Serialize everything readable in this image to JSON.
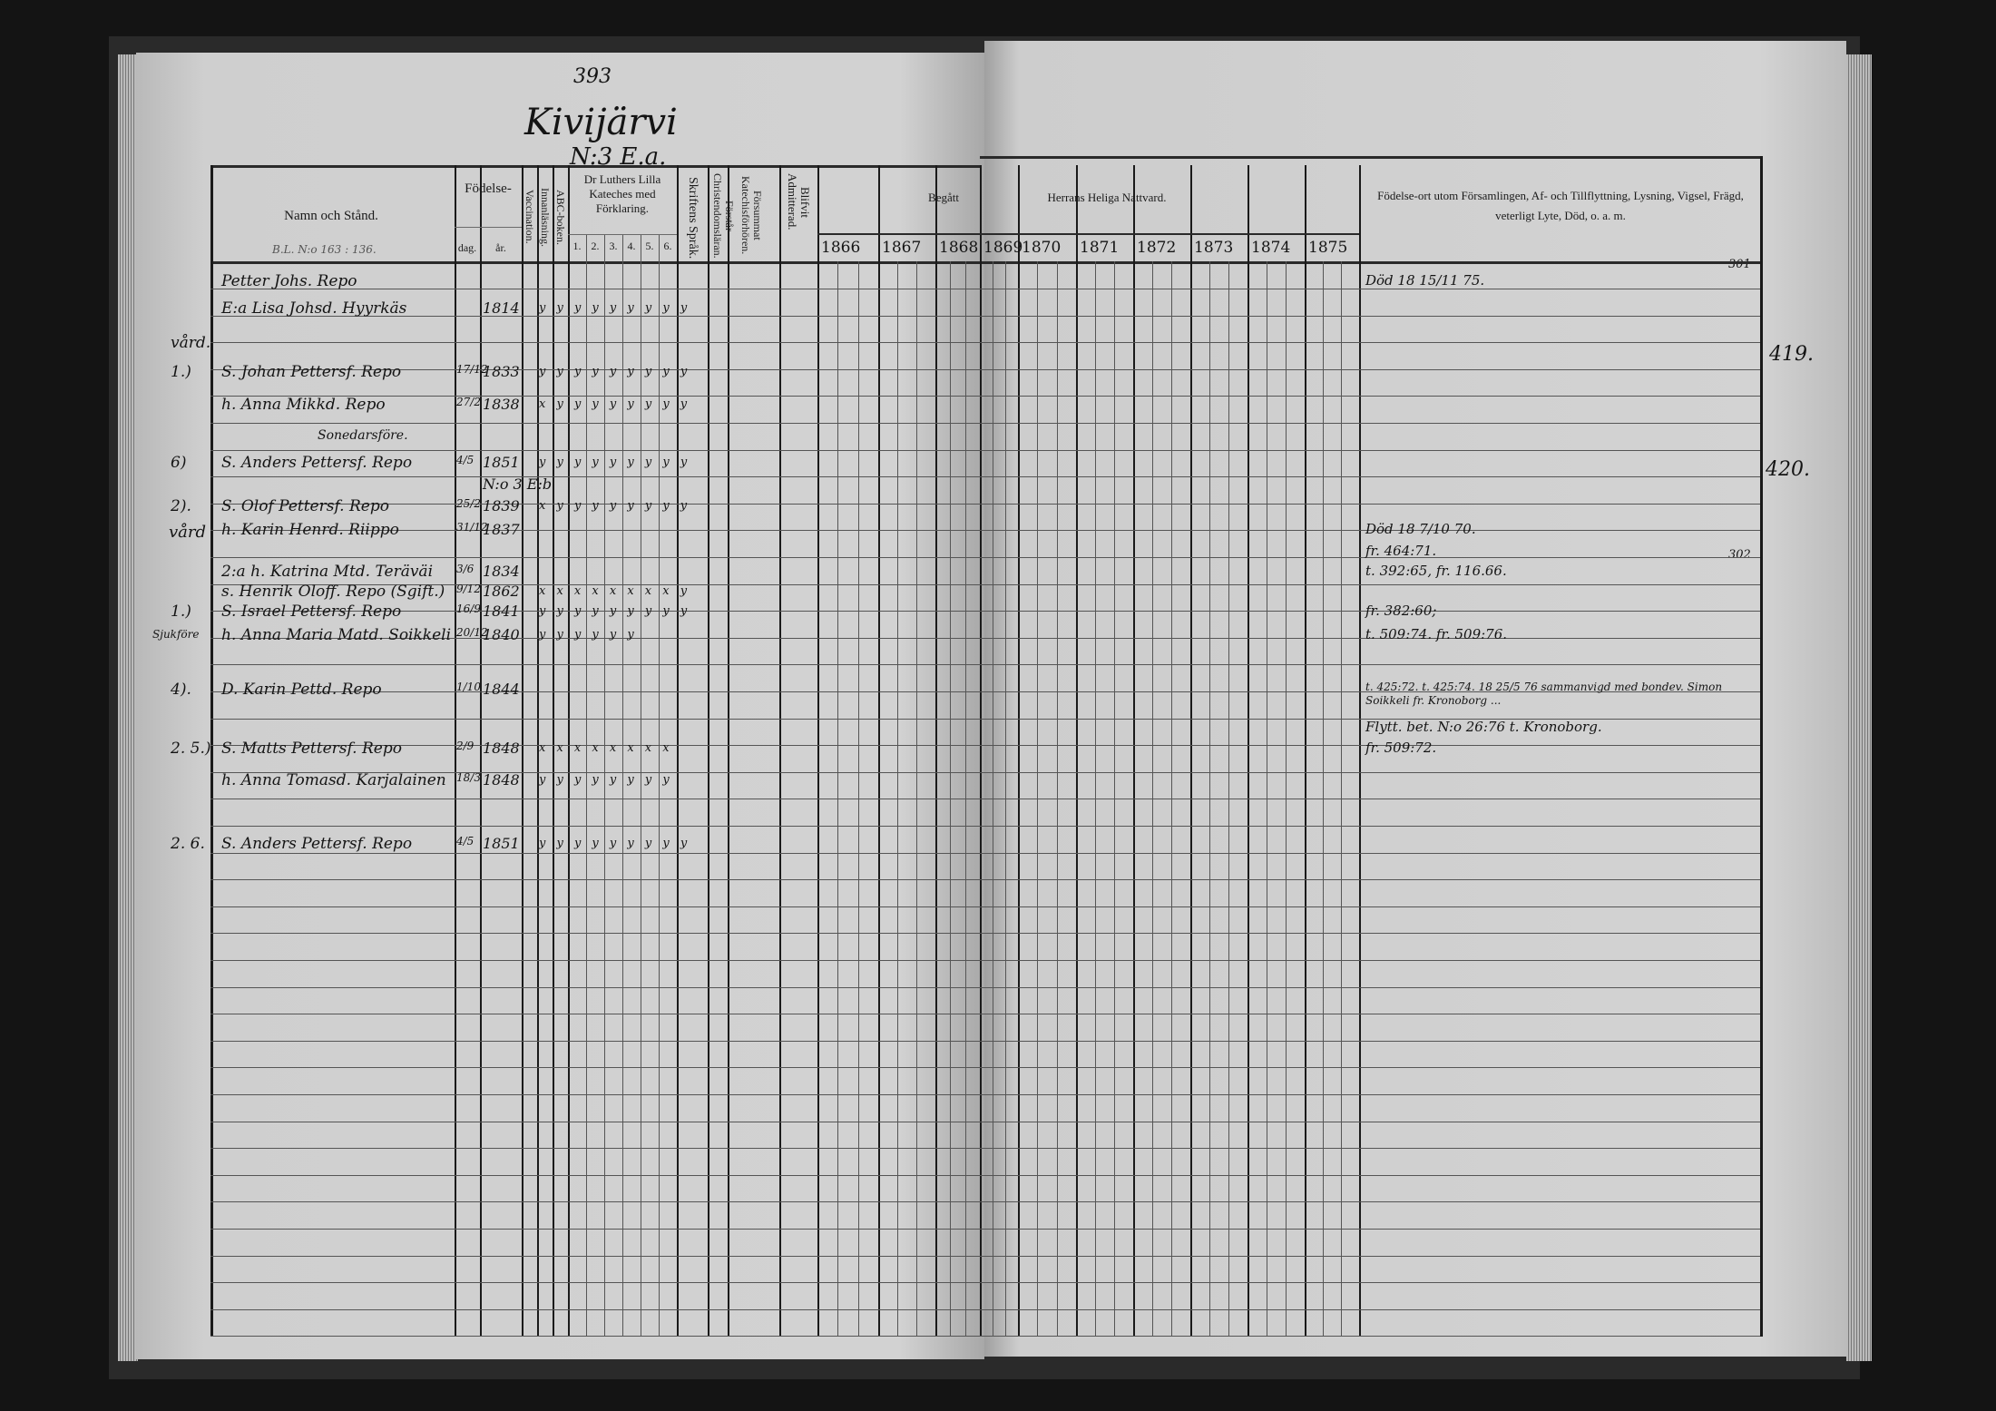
{
  "page_number": "393",
  "parish": "Kivijärvi",
  "house_number": "N:3 E.a.",
  "right_page_number_top": "301",
  "right_page_number_lower": "302",
  "outer_margin_numbers": [
    "419.",
    "420."
  ],
  "header": {
    "name_col": "Namn och Stånd.",
    "name_col_note": "B.L. N:o 163 : 136.",
    "birth": "Födelse-",
    "birth_day": "dag.",
    "birth_year": "år.",
    "vaccination": "Vaccination.",
    "reading": "Innanläsning.",
    "abc": "ABC-boken.",
    "catechism": "Dr Luthers Lilla Kateches med Förklaring.",
    "catechism_parts": [
      "1.",
      "2.",
      "3.",
      "4.",
      "5.",
      "6."
    ],
    "scripture": "Skriftens Språk.",
    "understands": "Förstår Christendomsläran.",
    "missed": "Försummat Katechisförhören.",
    "admitted": "Blifvit Admitterad.",
    "communion_left": "Begått",
    "communion_right": "Herrans Heliga Nattvard.",
    "years": [
      "1866",
      "1867",
      "1868",
      "1869",
      "1870",
      "1871",
      "1872",
      "1873",
      "1874",
      "1875"
    ],
    "remarks": "Födelse-ort utom Församlingen, Af- och Tillflyttning, Lysning, Vigsel, Frägd, veterligt Lyte, Död, o. a. m."
  },
  "rows": [
    {
      "prefix": "",
      "name": "Petter Johs. Repo",
      "day": "",
      "year": "",
      "marks": "",
      "remark": "Död 18 15/11 75."
    },
    {
      "prefix": "",
      "name": "E:a Lisa Johsd. Hyyrkäs",
      "day": "",
      "year": "1814",
      "marks": "y y y y y y y y y",
      "remark": ""
    },
    {
      "prefix": "vård.",
      "name": "",
      "day": "",
      "year": "",
      "marks": "",
      "remark": ""
    },
    {
      "prefix": "1.)",
      "name": "S. Johan Pettersf. Repo",
      "day": "17/12",
      "year": "1833",
      "marks": "y y y y y y y y y",
      "remark": ""
    },
    {
      "prefix": "",
      "name": "h. Anna Mikkd. Repo",
      "day": "27/2",
      "year": "1838",
      "marks": "x y y y y y y y y",
      "remark": ""
    },
    {
      "prefix": "",
      "name": "Sonedarsföre.",
      "day": "",
      "year": "",
      "marks": "",
      "remark": ""
    },
    {
      "prefix": "6)",
      "name": "S. Anders Pettersf. Repo",
      "day": "4/5",
      "year": "1851",
      "marks": "y y y y y y y y y",
      "remark": ""
    },
    {
      "prefix": "",
      "name": "",
      "day": "",
      "year": "N:o 3 E:b",
      "marks": "",
      "remark": ""
    },
    {
      "prefix": "2).",
      "name": "S. Olof Pettersf. Repo",
      "day": "25/2",
      "year": "1839",
      "marks": "x y y y y y y y y",
      "remark": ""
    },
    {
      "prefix": "",
      "name": "h. Karin Henrd. Riippo",
      "day": "31/12",
      "year": "1837",
      "marks": "",
      "remark": "Död 18 7/10 70."
    },
    {
      "prefix": "",
      "name": "",
      "day": "",
      "year": "",
      "marks": "",
      "remark": "fr. 464:71."
    },
    {
      "prefix": "",
      "name": "2:a h. Katrina Mtd. Teräväi",
      "day": "3/6",
      "year": "1834",
      "marks": "",
      "remark": "t. 392:65, fr. 116.66."
    },
    {
      "prefix": "",
      "name": "s. Henrik Oloff. Repo (Sgift.)",
      "day": "9/12",
      "year": "1862",
      "marks": "x x x x x x x x y",
      "remark": ""
    },
    {
      "prefix": "1.)",
      "name": "S. Israel Pettersf. Repo",
      "day": "16/9",
      "year": "1841",
      "marks": "y y y y y y y y y",
      "remark": "fr. 382:60;"
    },
    {
      "prefix": "",
      "name": "h. Anna Maria Matd. Soikkeli",
      "day": "20/12",
      "year": "1840",
      "marks": "y y y y y y",
      "remark": "t. 509:74.  fr. 509:76."
    },
    {
      "prefix": "4).",
      "name": "D. Karin Pettd. Repo",
      "day": "1/10",
      "year": "1844",
      "marks": "",
      "remark": "t. 425:72.  t. 425:74.  18 25/5 76 sammanvigd med bondev. Simon Soikkeli fr. Kronoborg ..."
    },
    {
      "prefix": "",
      "name": "",
      "day": "",
      "year": "",
      "marks": "",
      "remark": "Flytt. bet. N:o 26:76 t. Kronoborg."
    },
    {
      "prefix": "2. 5.)",
      "name": "S. Matts Pettersf. Repo",
      "day": "2/9",
      "year": "1848",
      "marks": "x x x x x x x x",
      "remark": "fr. 509:72."
    },
    {
      "prefix": "",
      "name": "h. Anna Tomasd. Karjalainen",
      "day": "18/3",
      "year": "1848",
      "marks": "y y y y y y y y",
      "remark": ""
    },
    {
      "prefix": "2. 6.",
      "name": "S. Anders Pettersf. Repo",
      "day": "4/5",
      "year": "1851",
      "marks": "y y y y y y y y y",
      "remark": ""
    }
  ],
  "margin_notes": [
    "Sjukföre",
    "vård"
  ]
}
